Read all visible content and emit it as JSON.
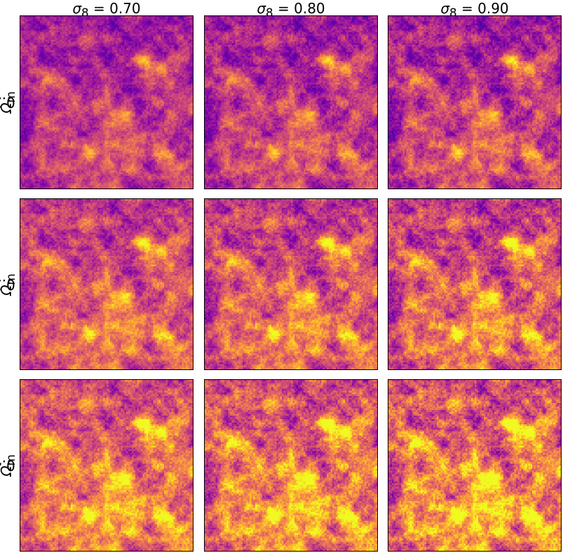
{
  "figure": {
    "colormap": "plasma",
    "column_headers": [
      {
        "symbol": "σ",
        "sub": "8",
        "value_text": " = 0.70",
        "sigma8": 0.7
      },
      {
        "symbol": "σ",
        "sub": "8",
        "value_text": " = 0.80",
        "sigma8": 0.8
      },
      {
        "symbol": "σ",
        "sub": "8",
        "value_text": " = 0.90",
        "sigma8": 0.9
      }
    ],
    "row_headers": [
      {
        "symbol": "Ω",
        "sub": "m",
        "value_text": " = 0.20",
        "omega_m": 0.2
      },
      {
        "symbol": "Ω",
        "sub": "m",
        "value_text": " = 0.30",
        "omega_m": 0.3
      },
      {
        "symbol": "Ω",
        "sub": "m",
        "value_text": " = 0.40",
        "omega_m": 0.4
      }
    ]
  }
}
